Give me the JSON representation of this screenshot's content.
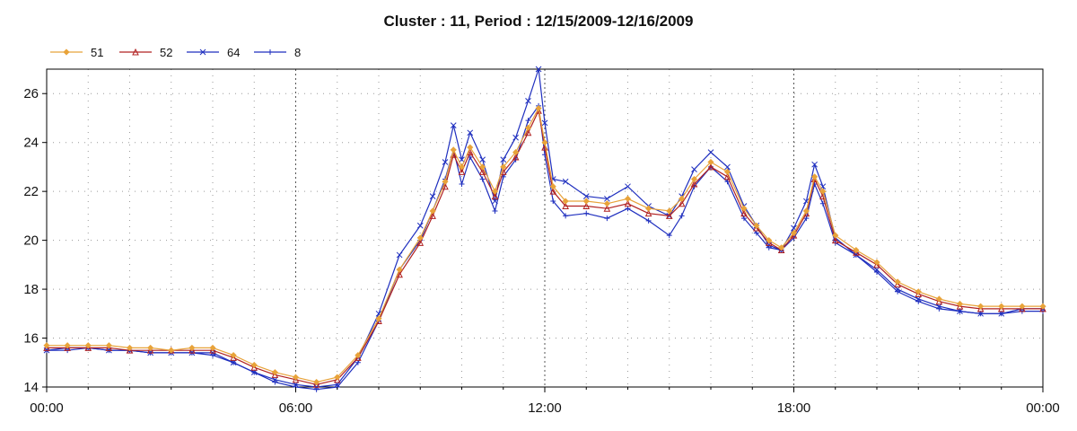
{
  "chart_data": {
    "type": "line",
    "title": "Cluster : 11, Period : 12/15/2009-12/16/2009",
    "xlabel": "",
    "ylabel": "",
    "x_unit": "hours",
    "xlim": [
      0,
      24
    ],
    "ylim": [
      14,
      27
    ],
    "x_ticks": [
      {
        "value": 0,
        "label": "00:00"
      },
      {
        "value": 6,
        "label": "06:00"
      },
      {
        "value": 12,
        "label": "12:00"
      },
      {
        "value": 18,
        "label": "18:00"
      },
      {
        "value": 24,
        "label": "00:00"
      }
    ],
    "y_ticks": [
      14,
      16,
      18,
      20,
      22,
      24,
      26
    ],
    "grid": "dotted",
    "legend_position": "top-left",
    "series": [
      {
        "name": "51",
        "color": "#e8a33a",
        "marker": "diamond",
        "points": [
          [
            0,
            15.7
          ],
          [
            0.5,
            15.7
          ],
          [
            1,
            15.7
          ],
          [
            1.5,
            15.7
          ],
          [
            2,
            15.6
          ],
          [
            2.5,
            15.6
          ],
          [
            3,
            15.5
          ],
          [
            3.5,
            15.6
          ],
          [
            4,
            15.6
          ],
          [
            4.5,
            15.3
          ],
          [
            5,
            14.9
          ],
          [
            5.5,
            14.6
          ],
          [
            6,
            14.4
          ],
          [
            6.5,
            14.2
          ],
          [
            7,
            14.4
          ],
          [
            7.5,
            15.3
          ],
          [
            8,
            16.8
          ],
          [
            8.5,
            18.8
          ],
          [
            9,
            20.1
          ],
          [
            9.3,
            21.2
          ],
          [
            9.6,
            22.4
          ],
          [
            9.8,
            23.7
          ],
          [
            10,
            23.0
          ],
          [
            10.2,
            23.8
          ],
          [
            10.5,
            23.0
          ],
          [
            10.8,
            22.0
          ],
          [
            11,
            23.0
          ],
          [
            11.3,
            23.6
          ],
          [
            11.6,
            24.6
          ],
          [
            11.85,
            25.4
          ],
          [
            12,
            24.0
          ],
          [
            12.2,
            22.2
          ],
          [
            12.5,
            21.6
          ],
          [
            13,
            21.6
          ],
          [
            13.5,
            21.5
          ],
          [
            14,
            21.7
          ],
          [
            14.5,
            21.3
          ],
          [
            15,
            21.2
          ],
          [
            15.3,
            21.7
          ],
          [
            15.6,
            22.5
          ],
          [
            16,
            23.2
          ],
          [
            16.4,
            22.8
          ],
          [
            16.8,
            21.3
          ],
          [
            17.1,
            20.6
          ],
          [
            17.4,
            20.0
          ],
          [
            17.7,
            19.7
          ],
          [
            18,
            20.3
          ],
          [
            18.3,
            21.2
          ],
          [
            18.5,
            22.6
          ],
          [
            18.7,
            22.0
          ],
          [
            19,
            20.2
          ],
          [
            19.5,
            19.6
          ],
          [
            20,
            19.1
          ],
          [
            20.5,
            18.3
          ],
          [
            21,
            17.9
          ],
          [
            21.5,
            17.6
          ],
          [
            22,
            17.4
          ],
          [
            22.5,
            17.3
          ],
          [
            23,
            17.3
          ],
          [
            23.5,
            17.3
          ],
          [
            24,
            17.3
          ]
        ]
      },
      {
        "name": "52",
        "color": "#b02020",
        "marker": "triangle",
        "points": [
          [
            0,
            15.6
          ],
          [
            0.5,
            15.6
          ],
          [
            1,
            15.6
          ],
          [
            1.5,
            15.6
          ],
          [
            2,
            15.5
          ],
          [
            2.5,
            15.5
          ],
          [
            3,
            15.5
          ],
          [
            3.5,
            15.5
          ],
          [
            4,
            15.5
          ],
          [
            4.5,
            15.2
          ],
          [
            5,
            14.8
          ],
          [
            5.5,
            14.5
          ],
          [
            6,
            14.3
          ],
          [
            6.5,
            14.1
          ],
          [
            7,
            14.3
          ],
          [
            7.5,
            15.2
          ],
          [
            8,
            16.7
          ],
          [
            8.5,
            18.6
          ],
          [
            9,
            19.9
          ],
          [
            9.3,
            21.0
          ],
          [
            9.6,
            22.2
          ],
          [
            9.8,
            23.5
          ],
          [
            10,
            22.8
          ],
          [
            10.2,
            23.6
          ],
          [
            10.5,
            22.8
          ],
          [
            10.8,
            21.8
          ],
          [
            11,
            22.8
          ],
          [
            11.3,
            23.4
          ],
          [
            11.6,
            24.4
          ],
          [
            11.85,
            25.3
          ],
          [
            12,
            23.8
          ],
          [
            12.2,
            22.0
          ],
          [
            12.5,
            21.4
          ],
          [
            13,
            21.4
          ],
          [
            13.5,
            21.3
          ],
          [
            14,
            21.5
          ],
          [
            14.5,
            21.1
          ],
          [
            15,
            21.0
          ],
          [
            15.3,
            21.5
          ],
          [
            15.6,
            22.3
          ],
          [
            16,
            23.0
          ],
          [
            16.4,
            22.6
          ],
          [
            16.8,
            21.1
          ],
          [
            17.1,
            20.5
          ],
          [
            17.4,
            19.9
          ],
          [
            17.7,
            19.6
          ],
          [
            18,
            20.2
          ],
          [
            18.3,
            21.1
          ],
          [
            18.5,
            22.5
          ],
          [
            18.7,
            21.8
          ],
          [
            19,
            20.0
          ],
          [
            19.5,
            19.5
          ],
          [
            20,
            19.0
          ],
          [
            20.5,
            18.2
          ],
          [
            21,
            17.8
          ],
          [
            21.5,
            17.5
          ],
          [
            22,
            17.3
          ],
          [
            22.5,
            17.2
          ],
          [
            23,
            17.2
          ],
          [
            23.5,
            17.2
          ],
          [
            24,
            17.2
          ]
        ]
      },
      {
        "name": "64",
        "color": "#1f2fbf",
        "marker": "x",
        "points": [
          [
            0,
            15.5
          ],
          [
            0.5,
            15.6
          ],
          [
            1,
            15.6
          ],
          [
            1.5,
            15.5
          ],
          [
            2,
            15.5
          ],
          [
            2.5,
            15.4
          ],
          [
            3,
            15.4
          ],
          [
            3.5,
            15.4
          ],
          [
            4,
            15.4
          ],
          [
            4.5,
            15.0
          ],
          [
            5,
            14.6
          ],
          [
            5.5,
            14.3
          ],
          [
            6,
            14.1
          ],
          [
            6.5,
            14.0
          ],
          [
            7,
            14.1
          ],
          [
            7.5,
            15.2
          ],
          [
            8,
            17.0
          ],
          [
            8.5,
            19.4
          ],
          [
            9,
            20.6
          ],
          [
            9.3,
            21.8
          ],
          [
            9.6,
            23.2
          ],
          [
            9.8,
            24.7
          ],
          [
            10,
            23.3
          ],
          [
            10.2,
            24.4
          ],
          [
            10.5,
            23.3
          ],
          [
            10.8,
            21.6
          ],
          [
            11,
            23.3
          ],
          [
            11.3,
            24.2
          ],
          [
            11.6,
            25.7
          ],
          [
            11.85,
            27.0
          ],
          [
            12,
            24.8
          ],
          [
            12.2,
            22.5
          ],
          [
            12.5,
            22.4
          ],
          [
            13,
            21.8
          ],
          [
            13.5,
            21.7
          ],
          [
            14,
            22.2
          ],
          [
            14.5,
            21.4
          ],
          [
            15,
            21.0
          ],
          [
            15.3,
            21.8
          ],
          [
            15.6,
            22.9
          ],
          [
            16,
            23.6
          ],
          [
            16.4,
            23.0
          ],
          [
            16.8,
            21.4
          ],
          [
            17.1,
            20.6
          ],
          [
            17.4,
            19.8
          ],
          [
            17.7,
            19.6
          ],
          [
            18,
            20.5
          ],
          [
            18.3,
            21.6
          ],
          [
            18.5,
            23.1
          ],
          [
            18.7,
            22.2
          ],
          [
            19,
            20.1
          ],
          [
            19.5,
            19.4
          ],
          [
            20,
            18.8
          ],
          [
            20.5,
            18.0
          ],
          [
            21,
            17.6
          ],
          [
            21.5,
            17.3
          ],
          [
            22,
            17.1
          ],
          [
            22.5,
            17.0
          ],
          [
            23,
            17.0
          ],
          [
            23.5,
            17.2
          ],
          [
            24,
            17.2
          ]
        ]
      },
      {
        "name": "8",
        "color": "#1f2fbf",
        "marker": "plus",
        "points": [
          [
            0,
            15.5
          ],
          [
            0.5,
            15.5
          ],
          [
            1,
            15.6
          ],
          [
            1.5,
            15.5
          ],
          [
            2,
            15.5
          ],
          [
            2.5,
            15.4
          ],
          [
            3,
            15.4
          ],
          [
            3.5,
            15.4
          ],
          [
            4,
            15.3
          ],
          [
            4.5,
            15.0
          ],
          [
            5,
            14.6
          ],
          [
            5.5,
            14.2
          ],
          [
            6,
            14.0
          ],
          [
            6.5,
            13.9
          ],
          [
            7,
            14.0
          ],
          [
            7.5,
            15.0
          ],
          [
            8,
            16.7
          ],
          [
            8.5,
            18.8
          ],
          [
            9,
            20.0
          ],
          [
            9.3,
            21.2
          ],
          [
            9.6,
            22.5
          ],
          [
            9.8,
            23.7
          ],
          [
            10,
            22.3
          ],
          [
            10.2,
            23.4
          ],
          [
            10.5,
            22.5
          ],
          [
            10.8,
            21.2
          ],
          [
            11,
            22.6
          ],
          [
            11.3,
            23.3
          ],
          [
            11.6,
            24.9
          ],
          [
            11.85,
            25.5
          ],
          [
            12,
            23.5
          ],
          [
            12.2,
            21.6
          ],
          [
            12.5,
            21.0
          ],
          [
            13,
            21.1
          ],
          [
            13.5,
            20.9
          ],
          [
            14,
            21.3
          ],
          [
            14.5,
            20.8
          ],
          [
            15,
            20.2
          ],
          [
            15.3,
            21.0
          ],
          [
            15.6,
            22.2
          ],
          [
            16,
            23.0
          ],
          [
            16.4,
            22.4
          ],
          [
            16.8,
            20.9
          ],
          [
            17.1,
            20.3
          ],
          [
            17.4,
            19.7
          ],
          [
            17.7,
            19.6
          ],
          [
            18,
            20.1
          ],
          [
            18.3,
            20.9
          ],
          [
            18.5,
            22.3
          ],
          [
            18.7,
            21.5
          ],
          [
            19,
            19.9
          ],
          [
            19.5,
            19.4
          ],
          [
            20,
            18.7
          ],
          [
            20.5,
            17.9
          ],
          [
            21,
            17.5
          ],
          [
            21.5,
            17.2
          ],
          [
            22,
            17.1
          ],
          [
            22.5,
            17.0
          ],
          [
            23,
            17.0
          ],
          [
            23.5,
            17.1
          ],
          [
            24,
            17.1
          ]
        ]
      }
    ]
  }
}
